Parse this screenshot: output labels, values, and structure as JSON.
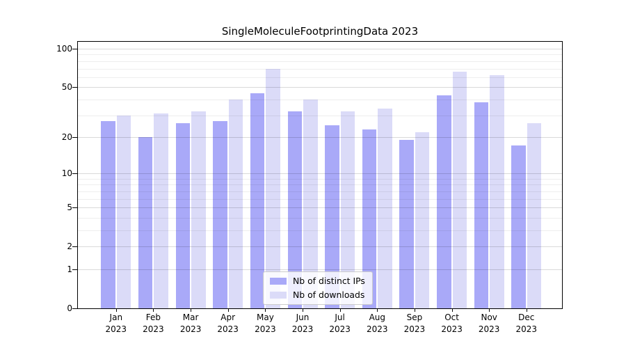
{
  "title": "SingleMoleculeFootprintingData 2023",
  "chart_data": {
    "type": "bar",
    "title": "SingleMoleculeFootprintingData 2023",
    "categories": [
      "Jan",
      "Feb",
      "Mar",
      "Apr",
      "May",
      "Jun",
      "Jul",
      "Aug",
      "Sep",
      "Oct",
      "Nov",
      "Dec"
    ],
    "year": "2023",
    "series": [
      {
        "name": "Nb of distinct IPs",
        "color": "#a9a9f8",
        "values": [
          27,
          20,
          26,
          27,
          45,
          32,
          25,
          23,
          19,
          43,
          38,
          17
        ]
      },
      {
        "name": "Nb of downloads",
        "color": "#dbdbf8",
        "values": [
          30,
          31,
          32,
          40,
          70,
          40,
          32,
          34,
          22,
          66,
          62,
          26
        ]
      }
    ],
    "y_axis": {
      "scale": "log10(1+value)",
      "major_ticks": [
        0,
        1,
        2,
        5,
        10,
        20,
        50,
        100
      ],
      "minor_gridlines": [
        3,
        4,
        6,
        7,
        8,
        9,
        30,
        40,
        60,
        70,
        80,
        90
      ],
      "top_value": 114
    },
    "xlabel": "",
    "ylabel": "",
    "grid": "on",
    "legend": {
      "position": "lower center",
      "items": [
        "Nb of distinct IPs",
        "Nb of downloads"
      ]
    }
  }
}
